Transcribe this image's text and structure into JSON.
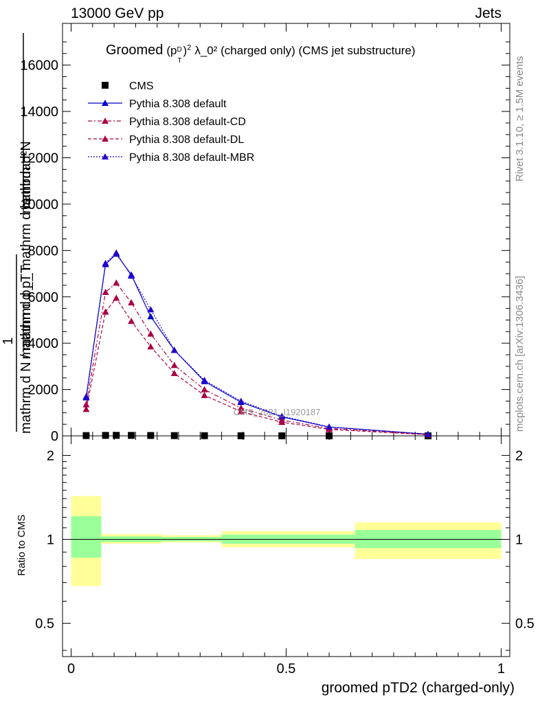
{
  "header": {
    "left": "13000 GeV pp",
    "right": "Jets"
  },
  "side_labels": {
    "rivet": "Rivet 3.1.10, ≥ 1.5M events",
    "mcplots": "mcplots.cern.ch [arXiv:1306.3436]"
  },
  "plot_title": {
    "prefix": "Groomed",
    "suffix": "λ_0²  (charged only) (CMS jet substructure)"
  },
  "watermark": "CMS_2021_I1920187",
  "top_y_label": {
    "line1": "mathrm d²N",
    "line2": "mathrm d p_T mathrm d lambda",
    "line3": "1",
    "line4": "mathrm d N / mathrm d p_T"
  },
  "ratio_y_label": "Ratio to CMS",
  "x_label": "groomed pTD2 (charged-only)",
  "legend": [
    {
      "label": "CMS",
      "color": "#000000",
      "style": "square"
    },
    {
      "label": "Pythia 8.308 default",
      "color": "#0000cc",
      "style": "solid"
    },
    {
      "label": "Pythia 8.308 default-CD",
      "color": "#aa0044",
      "style": "dash-dot"
    },
    {
      "label": "Pythia 8.308 default-DL",
      "color": "#aa0044",
      "style": "dashed"
    },
    {
      "label": "Pythia 8.308 default-MBR",
      "color": "#2200cc",
      "style": "dotted"
    }
  ],
  "chart_data": [
    {
      "type": "line",
      "panel": "main",
      "xlim": [
        -0.02,
        1.02
      ],
      "ylim": [
        0,
        17800
      ],
      "yticks": [
        0,
        2000,
        4000,
        6000,
        8000,
        10000,
        12000,
        14000,
        16000
      ],
      "ytick_labels": [
        "0",
        "2000",
        "4000",
        "6000",
        "8000",
        "10000",
        "12000",
        "14000",
        "16000"
      ],
      "x": [
        0.035,
        0.08,
        0.105,
        0.14,
        0.185,
        0.24,
        0.31,
        0.395,
        0.49,
        0.6,
        0.83
      ],
      "series": [
        {
          "name": "CMS",
          "values": [
            12,
            20,
            22,
            20,
            16,
            11,
            8,
            5,
            3,
            2,
            1
          ]
        },
        {
          "name": "Pythia 8.308 default",
          "values": [
            1650,
            7400,
            7850,
            6950,
            5150,
            3700,
            2350,
            1450,
            820,
            380,
            70
          ]
        },
        {
          "name": "Pythia 8.308 default-CD",
          "values": [
            1350,
            6200,
            6600,
            5750,
            4400,
            3050,
            2000,
            1200,
            680,
            320,
            60
          ]
        },
        {
          "name": "Pythia 8.308 default-DL",
          "values": [
            1150,
            5350,
            5950,
            4950,
            3850,
            2700,
            1750,
            1050,
            590,
            280,
            50
          ]
        },
        {
          "name": "Pythia 8.308 default-MBR",
          "values": [
            1700,
            7450,
            7900,
            6900,
            5450,
            3700,
            2400,
            1500,
            850,
            390,
            75
          ]
        }
      ]
    },
    {
      "type": "area",
      "panel": "ratio",
      "xlim": [
        -0.02,
        1.02
      ],
      "ylim": [
        0.38,
        2.35
      ],
      "log_y": true,
      "yticks": [
        0.5,
        1,
        2
      ],
      "ytick_labels": [
        "0.5",
        "1",
        "2"
      ],
      "xticks": [
        0,
        0.5,
        1
      ],
      "xtick_labels": [
        "0",
        "0.5",
        "1"
      ],
      "bins": [
        {
          "x0": 0.0,
          "x1": 0.07,
          "stat_lo": 0.86,
          "stat_hi": 1.21,
          "tot_lo": 0.68,
          "tot_hi": 1.43
        },
        {
          "x0": 0.07,
          "x1": 0.21,
          "stat_lo": 0.98,
          "stat_hi": 1.025,
          "tot_lo": 0.965,
          "tot_hi": 1.045
        },
        {
          "x0": 0.21,
          "x1": 0.35,
          "stat_lo": 0.985,
          "stat_hi": 1.02,
          "tot_lo": 0.975,
          "tot_hi": 1.035
        },
        {
          "x0": 0.35,
          "x1": 0.66,
          "stat_lo": 0.965,
          "stat_hi": 1.04,
          "tot_lo": 0.935,
          "tot_hi": 1.07
        },
        {
          "x0": 0.66,
          "x1": 1.0,
          "stat_lo": 0.93,
          "stat_hi": 1.08,
          "tot_lo": 0.85,
          "tot_hi": 1.15
        }
      ],
      "colors": {
        "stat": "#99ff99",
        "total": "#ffff99"
      }
    }
  ]
}
